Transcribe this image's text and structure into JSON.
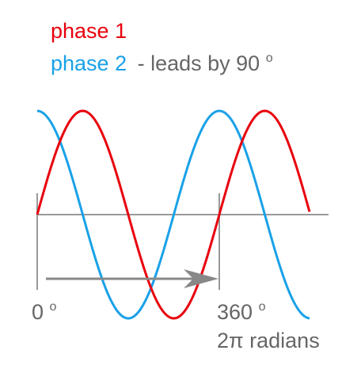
{
  "legend": {
    "phase1": {
      "label": "phase 1",
      "color": "#e8000d"
    },
    "phase2": {
      "label": "phase 2",
      "color": "#19a1e8",
      "note": "- leads by 90",
      "note_sup": "o"
    },
    "note_color": "#666666"
  },
  "axis_color": "#999999",
  "arrow_color": "#888888",
  "labels": {
    "start": "0",
    "start_sup": "o",
    "end": "360",
    "end_sup": "o",
    "end_radians": "2π radians"
  },
  "waves": {
    "phase1_offset_deg": 0,
    "phase2_offset_deg": 90,
    "cycles_shown": 1.5
  }
}
